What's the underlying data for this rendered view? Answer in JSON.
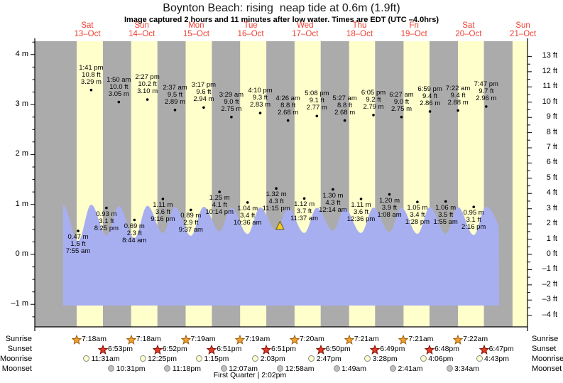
{
  "title": "Boynton Beach: rising  neap tide at 0.6m (1.9ft)",
  "subtitle": "Image captured 2 hours and 11 minutes after low water. Times are EDT (UTC –4.0hrs)",
  "colors": {
    "day_band": "#ffffcc",
    "night_band": "#ababab",
    "tide_fill": "#a8aff0",
    "day_label_red": "#ef3f33",
    "sunrise_star": "#f2a02e",
    "sunrise_star_edge": "#9c5f0e",
    "sunset_star": "#e23a26",
    "sunset_star_edge": "#7e150c",
    "moonrise_disc": "#ffffcc",
    "moonset_disc": "#bfbfbf",
    "marker_fill": "#f2cd2a",
    "marker_edge": "#6b5900"
  },
  "chart_data": {
    "type": "line",
    "title": "Boynton Beach: rising  neap tide at 0.6m (1.9ft)",
    "ylim_m": [
      -1.45,
      4.27
    ],
    "grid": false,
    "days": [
      {
        "name": "Sat",
        "date": "13–Oct"
      },
      {
        "name": "Sun",
        "date": "14–Oct"
      },
      {
        "name": "Mon",
        "date": "15–Oct"
      },
      {
        "name": "Tue",
        "date": "16–Oct"
      },
      {
        "name": "Wed",
        "date": "17–Oct"
      },
      {
        "name": "Thu",
        "date": "18–Oct"
      },
      {
        "name": "Fri",
        "date": "19–Oct"
      },
      {
        "name": "Sat",
        "date": "20–Oct"
      },
      {
        "name": "Sun",
        "date": "21–Oct"
      }
    ],
    "yticks_m": [
      {
        "v": 4,
        "label": "4 m"
      },
      {
        "v": 3,
        "label": "3 m"
      },
      {
        "v": 2,
        "label": "2 m"
      },
      {
        "v": 1,
        "label": "1 m"
      },
      {
        "v": 0,
        "label": "0 m"
      },
      {
        "v": -1,
        "label": "–1 m"
      }
    ],
    "yticks_ft": [
      {
        "v": 13,
        "label": "13 ft"
      },
      {
        "v": 12,
        "label": "12 ft"
      },
      {
        "v": 11,
        "label": "11 ft"
      },
      {
        "v": 10,
        "label": "10 ft"
      },
      {
        "v": 9,
        "label": "9 ft"
      },
      {
        "v": 8,
        "label": "8 ft"
      },
      {
        "v": 7,
        "label": "7 ft"
      },
      {
        "v": 6,
        "label": "6 ft"
      },
      {
        "v": 5,
        "label": "5 ft"
      },
      {
        "v": 4,
        "label": "4 ft"
      },
      {
        "v": 3,
        "label": "3 ft"
      },
      {
        "v": 2,
        "label": "2 ft"
      },
      {
        "v": 1,
        "label": "1 ft"
      },
      {
        "v": 0,
        "label": "0 ft"
      },
      {
        "v": -1,
        "label": "–1 ft"
      },
      {
        "v": -2,
        "label": "–2 ft"
      },
      {
        "v": -3,
        "label": "–3 ft"
      },
      {
        "v": -4,
        "label": "–4 ft"
      }
    ],
    "highs": [
      {
        "day": 0,
        "time": "1:41 pm",
        "ft": "10.8 ft",
        "m": "3.29 m"
      },
      {
        "day": 1,
        "time": "1:50 am",
        "ft": "10.0 ft",
        "m": "3.05 m"
      },
      {
        "day": 1,
        "time": "2:27 pm",
        "ft": "10.2 ft",
        "m": "3.10 m"
      },
      {
        "day": 2,
        "time": "2:37 am",
        "ft": "9.5 ft",
        "m": "2.89 m"
      },
      {
        "day": 2,
        "time": "3:17 pm",
        "ft": "9.6 ft",
        "m": "2.94 m"
      },
      {
        "day": 3,
        "time": "3:29 am",
        "ft": "9.0 ft",
        "m": "2.75 m"
      },
      {
        "day": 3,
        "time": "4:10 pm",
        "ft": "9.3 ft",
        "m": "2.83 m"
      },
      {
        "day": 4,
        "time": "4:26 am",
        "ft": "8.8 ft",
        "m": "2.68 m"
      },
      {
        "day": 4,
        "time": "5:08 pm",
        "ft": "9.1 ft",
        "m": "2.77 m"
      },
      {
        "day": 5,
        "time": "5:27 am",
        "ft": "8.8 ft",
        "m": "2.68 m"
      },
      {
        "day": 5,
        "time": "6:05 pm",
        "ft": "9.2 ft",
        "m": "2.79 m"
      },
      {
        "day": 6,
        "time": "6:27 am",
        "ft": "9.0 ft",
        "m": "2.75 m"
      },
      {
        "day": 6,
        "time": "6:59 pm",
        "ft": "9.4 ft",
        "m": "2.86 m"
      },
      {
        "day": 7,
        "time": "7:22 am",
        "ft": "9.4 ft",
        "m": "2.88 m"
      },
      {
        "day": 7,
        "time": "7:47 pm",
        "ft": "9.7 ft",
        "m": "2.96 m"
      }
    ],
    "lows": [
      {
        "day": 0,
        "time": "7:55 am",
        "ft": "1.5 ft",
        "m": "0.47 m"
      },
      {
        "day": 0,
        "time": "8:25 pm",
        "ft": "3.1 ft",
        "m": "0.93 m"
      },
      {
        "day": 1,
        "time": "8:44 am",
        "ft": "2.3 ft",
        "m": "0.69 m"
      },
      {
        "day": 1,
        "time": "9:16 pm",
        "ft": "3.6 ft",
        "m": "1.11 m"
      },
      {
        "day": 2,
        "time": "9:37 am",
        "ft": "2.9 ft",
        "m": "0.89 m"
      },
      {
        "day": 2,
        "time": "10:14 pm",
        "ft": "4.1 ft",
        "m": "1.25 m"
      },
      {
        "day": 3,
        "time": "10:36 am",
        "ft": "3.4 ft",
        "m": "1.04 m"
      },
      {
        "day": 3,
        "time": "11:15 pm",
        "ft": "4.3 ft",
        "m": "1.32 m"
      },
      {
        "day": 4,
        "time": "11:37 am",
        "ft": "3.7 ft",
        "m": "1.12 m"
      },
      {
        "day": 5,
        "time": "12:14 am",
        "ft": "4.3 ft",
        "m": "1.30 m"
      },
      {
        "day": 5,
        "time": "12:36 pm",
        "ft": "3.6 ft",
        "m": "1.11 m"
      },
      {
        "day": 6,
        "time": "1:08 am",
        "ft": "3.9 ft",
        "m": "1.20 m"
      },
      {
        "day": 6,
        "time": "1:28 pm",
        "ft": "3.4 ft",
        "m": "1.05 m"
      },
      {
        "day": 7,
        "time": "1:55 am",
        "ft": "3.5 ft",
        "m": "1.06 m"
      },
      {
        "day": 7,
        "time": "2:16 pm",
        "ft": "3.1 ft",
        "m": "0.95 m"
      }
    ],
    "marker": {
      "height_m": 0.6,
      "height_ft": 1.9,
      "state": "rising"
    }
  },
  "almanac": {
    "rows": [
      {
        "label": "Sunrise",
        "icon": "sunrise-star-icon",
        "entries": [
          {
            "day": 0,
            "time": "7:18am"
          },
          {
            "day": 1,
            "time": "7:18am"
          },
          {
            "day": 2,
            "time": "7:19am"
          },
          {
            "day": 3,
            "time": "7:19am"
          },
          {
            "day": 4,
            "time": "7:20am"
          },
          {
            "day": 5,
            "time": "7:21am"
          },
          {
            "day": 6,
            "time": "7:21am"
          },
          {
            "day": 7,
            "time": "7:22am"
          }
        ]
      },
      {
        "label": "Sunset",
        "icon": "sunset-star-icon",
        "entries": [
          {
            "day": 0,
            "time": "6:53pm"
          },
          {
            "day": 1,
            "time": "6:52pm"
          },
          {
            "day": 2,
            "time": "6:51pm"
          },
          {
            "day": 3,
            "time": "6:51pm"
          },
          {
            "day": 4,
            "time": "6:50pm"
          },
          {
            "day": 5,
            "time": "6:49pm"
          },
          {
            "day": 6,
            "time": "6:48pm"
          },
          {
            "day": 7,
            "time": "6:47pm"
          }
        ]
      },
      {
        "label": "Moonrise",
        "icon": "moonrise-disc-icon",
        "entries": [
          {
            "day": 0,
            "time": "11:31am"
          },
          {
            "day": 1,
            "time": "12:25pm"
          },
          {
            "day": 2,
            "time": "1:15pm"
          },
          {
            "day": 3,
            "time": "2:03pm"
          },
          {
            "day": 4,
            "time": "2:47pm"
          },
          {
            "day": 5,
            "time": "3:28pm"
          },
          {
            "day": 6,
            "time": "4:06pm"
          },
          {
            "day": 7,
            "time": "4:43pm"
          }
        ]
      },
      {
        "label": "Moonset",
        "icon": "moonset-disc-icon",
        "entries": [
          {
            "day": 0,
            "time": "10:31pm"
          },
          {
            "day": 1,
            "time": "11:18pm"
          },
          {
            "day": 3,
            "time": "12:07am"
          },
          {
            "day": 4,
            "time": "12:58am"
          },
          {
            "day": 5,
            "time": "1:49am"
          },
          {
            "day": 6,
            "time": "2:41am"
          },
          {
            "day": 7,
            "time": "3:34am"
          }
        ]
      }
    ],
    "moon_phase": "First Quarter | 2:02pm"
  }
}
